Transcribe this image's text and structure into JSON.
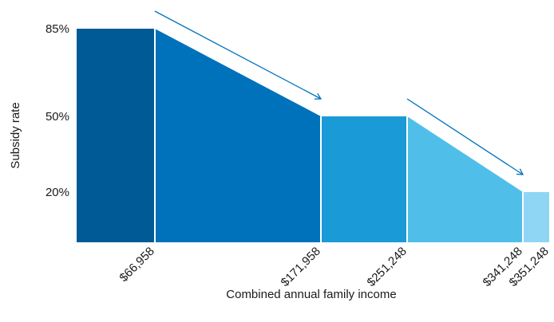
{
  "chart_data": {
    "type": "area",
    "xlabel": "Combined annual family income",
    "ylabel": "Subsidy rate",
    "y_ticks": [
      {
        "value": 85,
        "label": "85%"
      },
      {
        "value": 50,
        "label": "50%"
      },
      {
        "value": 20,
        "label": "20%"
      }
    ],
    "x_ticks": [
      {
        "value": 66958,
        "label": "$66,958"
      },
      {
        "value": 171958,
        "label": "$171,958"
      },
      {
        "value": 251248,
        "label": "$251,248"
      },
      {
        "value": 341248,
        "label": "$341,248"
      },
      {
        "value": 351248,
        "label": "$351,248"
      }
    ],
    "segments": [
      {
        "x_start": 0,
        "x_end": 66958,
        "y_start": 85,
        "y_end": 85,
        "color": "#005a96"
      },
      {
        "x_start": 66958,
        "x_end": 171958,
        "y_start": 85,
        "y_end": 50,
        "color": "#0072bc"
      },
      {
        "x_start": 171958,
        "x_end": 251248,
        "y_start": 50,
        "y_end": 50,
        "color": "#1a9ad6"
      },
      {
        "x_start": 251248,
        "x_end": 341248,
        "y_start": 50,
        "y_end": 20,
        "color": "#4fbfea"
      },
      {
        "x_start": 341248,
        "x_end": 351248,
        "y_start": 20,
        "y_end": 20,
        "color": "#8fd6f5"
      }
    ],
    "annotations": [
      {
        "type": "arrow",
        "description": "decline",
        "segment": 1
      },
      {
        "type": "arrow",
        "description": "decline",
        "segment": 3
      }
    ],
    "colors": {
      "arrow": "#0072bc",
      "text": "#1a1a1a",
      "divider": "#ffffff"
    }
  }
}
